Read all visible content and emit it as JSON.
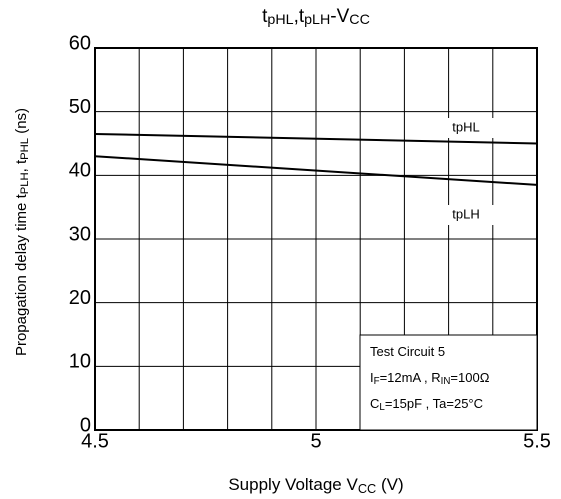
{
  "chart_data": {
    "type": "line",
    "title": [
      {
        "text": "t"
      },
      {
        "text": "pHL",
        "sub": true
      },
      {
        "text": ",t"
      },
      {
        "text": "pLH",
        "sub": true
      },
      {
        "text": "-V"
      },
      {
        "text": "CC",
        "sub": true
      }
    ],
    "x_label": [
      {
        "text": "Supply Voltage V"
      },
      {
        "text": "CC",
        "sub": true
      },
      {
        "text": " (V)"
      }
    ],
    "y_label": [
      {
        "text": "Propagation delay time   t"
      },
      {
        "text": "PLH",
        "sub": true
      },
      {
        "text": ", t"
      },
      {
        "text": "PHL",
        "sub": true
      },
      {
        "text": "   (ns)"
      }
    ],
    "x": [
      4.5,
      5.5
    ],
    "series": [
      {
        "name": "tpHL",
        "color": "#000000",
        "values": [
          46.5,
          45
        ]
      },
      {
        "name": "tpLH",
        "color": "#000000",
        "values": [
          43,
          38.5
        ]
      }
    ],
    "xlim": [
      4.5,
      5.5
    ],
    "xticks": [
      4.5,
      5,
      5.5
    ],
    "x_minor_ticks": [
      4.6,
      4.7,
      4.8,
      4.9,
      5.1,
      5.2,
      5.3,
      5.4
    ],
    "ylim": [
      0,
      60
    ],
    "yticks": [
      0,
      10,
      20,
      30,
      40,
      50,
      60
    ],
    "grid": true,
    "annotations": [
      [
        {
          "text": "Test Circuit 5"
        }
      ],
      [
        {
          "text": "I"
        },
        {
          "text": "F",
          "sub": true
        },
        {
          "text": "=12mA , R"
        },
        {
          "text": "IN",
          "sub": true
        },
        {
          "text": "=100Ω"
        }
      ],
      [
        {
          "text": "C"
        },
        {
          "text": "L",
          "sub": true
        },
        {
          "text": "=15pF , Ta=25°C"
        }
      ]
    ]
  }
}
